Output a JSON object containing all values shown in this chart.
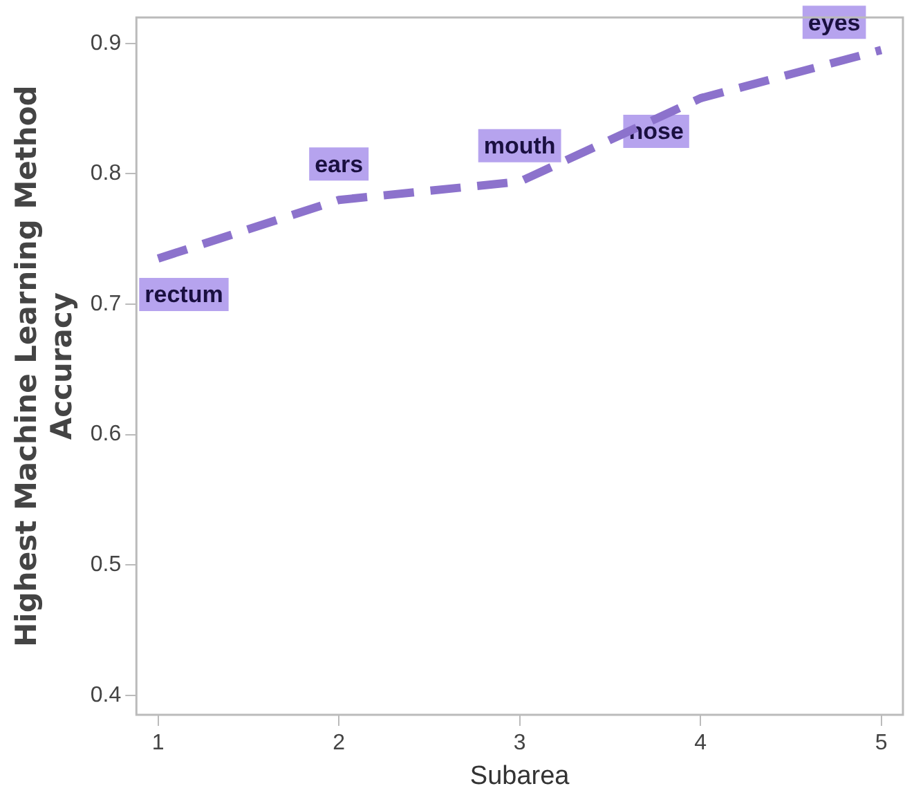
{
  "chart_data": {
    "type": "line",
    "xlabel": "Subarea",
    "ylabel": "Highest Machine Learning Method Accuracy",
    "x": [
      1,
      2,
      3,
      4,
      5
    ],
    "series": [
      {
        "color": "#8c72cc",
        "values": [
          0.735,
          0.78,
          0.794,
          0.858,
          0.895
        ]
      }
    ],
    "xlim": [
      0.88,
      5.12
    ],
    "xticks": [
      1,
      2,
      3,
      4,
      5
    ],
    "ylim": [
      0.385,
      0.92
    ],
    "yticks": [
      0.4,
      0.5,
      0.6,
      0.7,
      0.8,
      0.9
    ],
    "line_style": "dashed",
    "marker": "none",
    "grid": false,
    "legend": false,
    "annotations": [
      {
        "text": "rectum",
        "x": 1,
        "y": 0.735
      },
      {
        "text": "ears",
        "x": 2,
        "y": 0.78
      },
      {
        "text": "mouth",
        "x": 3,
        "y": 0.794
      },
      {
        "text": "nose",
        "x": 4,
        "y": 0.858
      },
      {
        "text": "eyes",
        "x": 5,
        "y": 0.895
      }
    ]
  }
}
